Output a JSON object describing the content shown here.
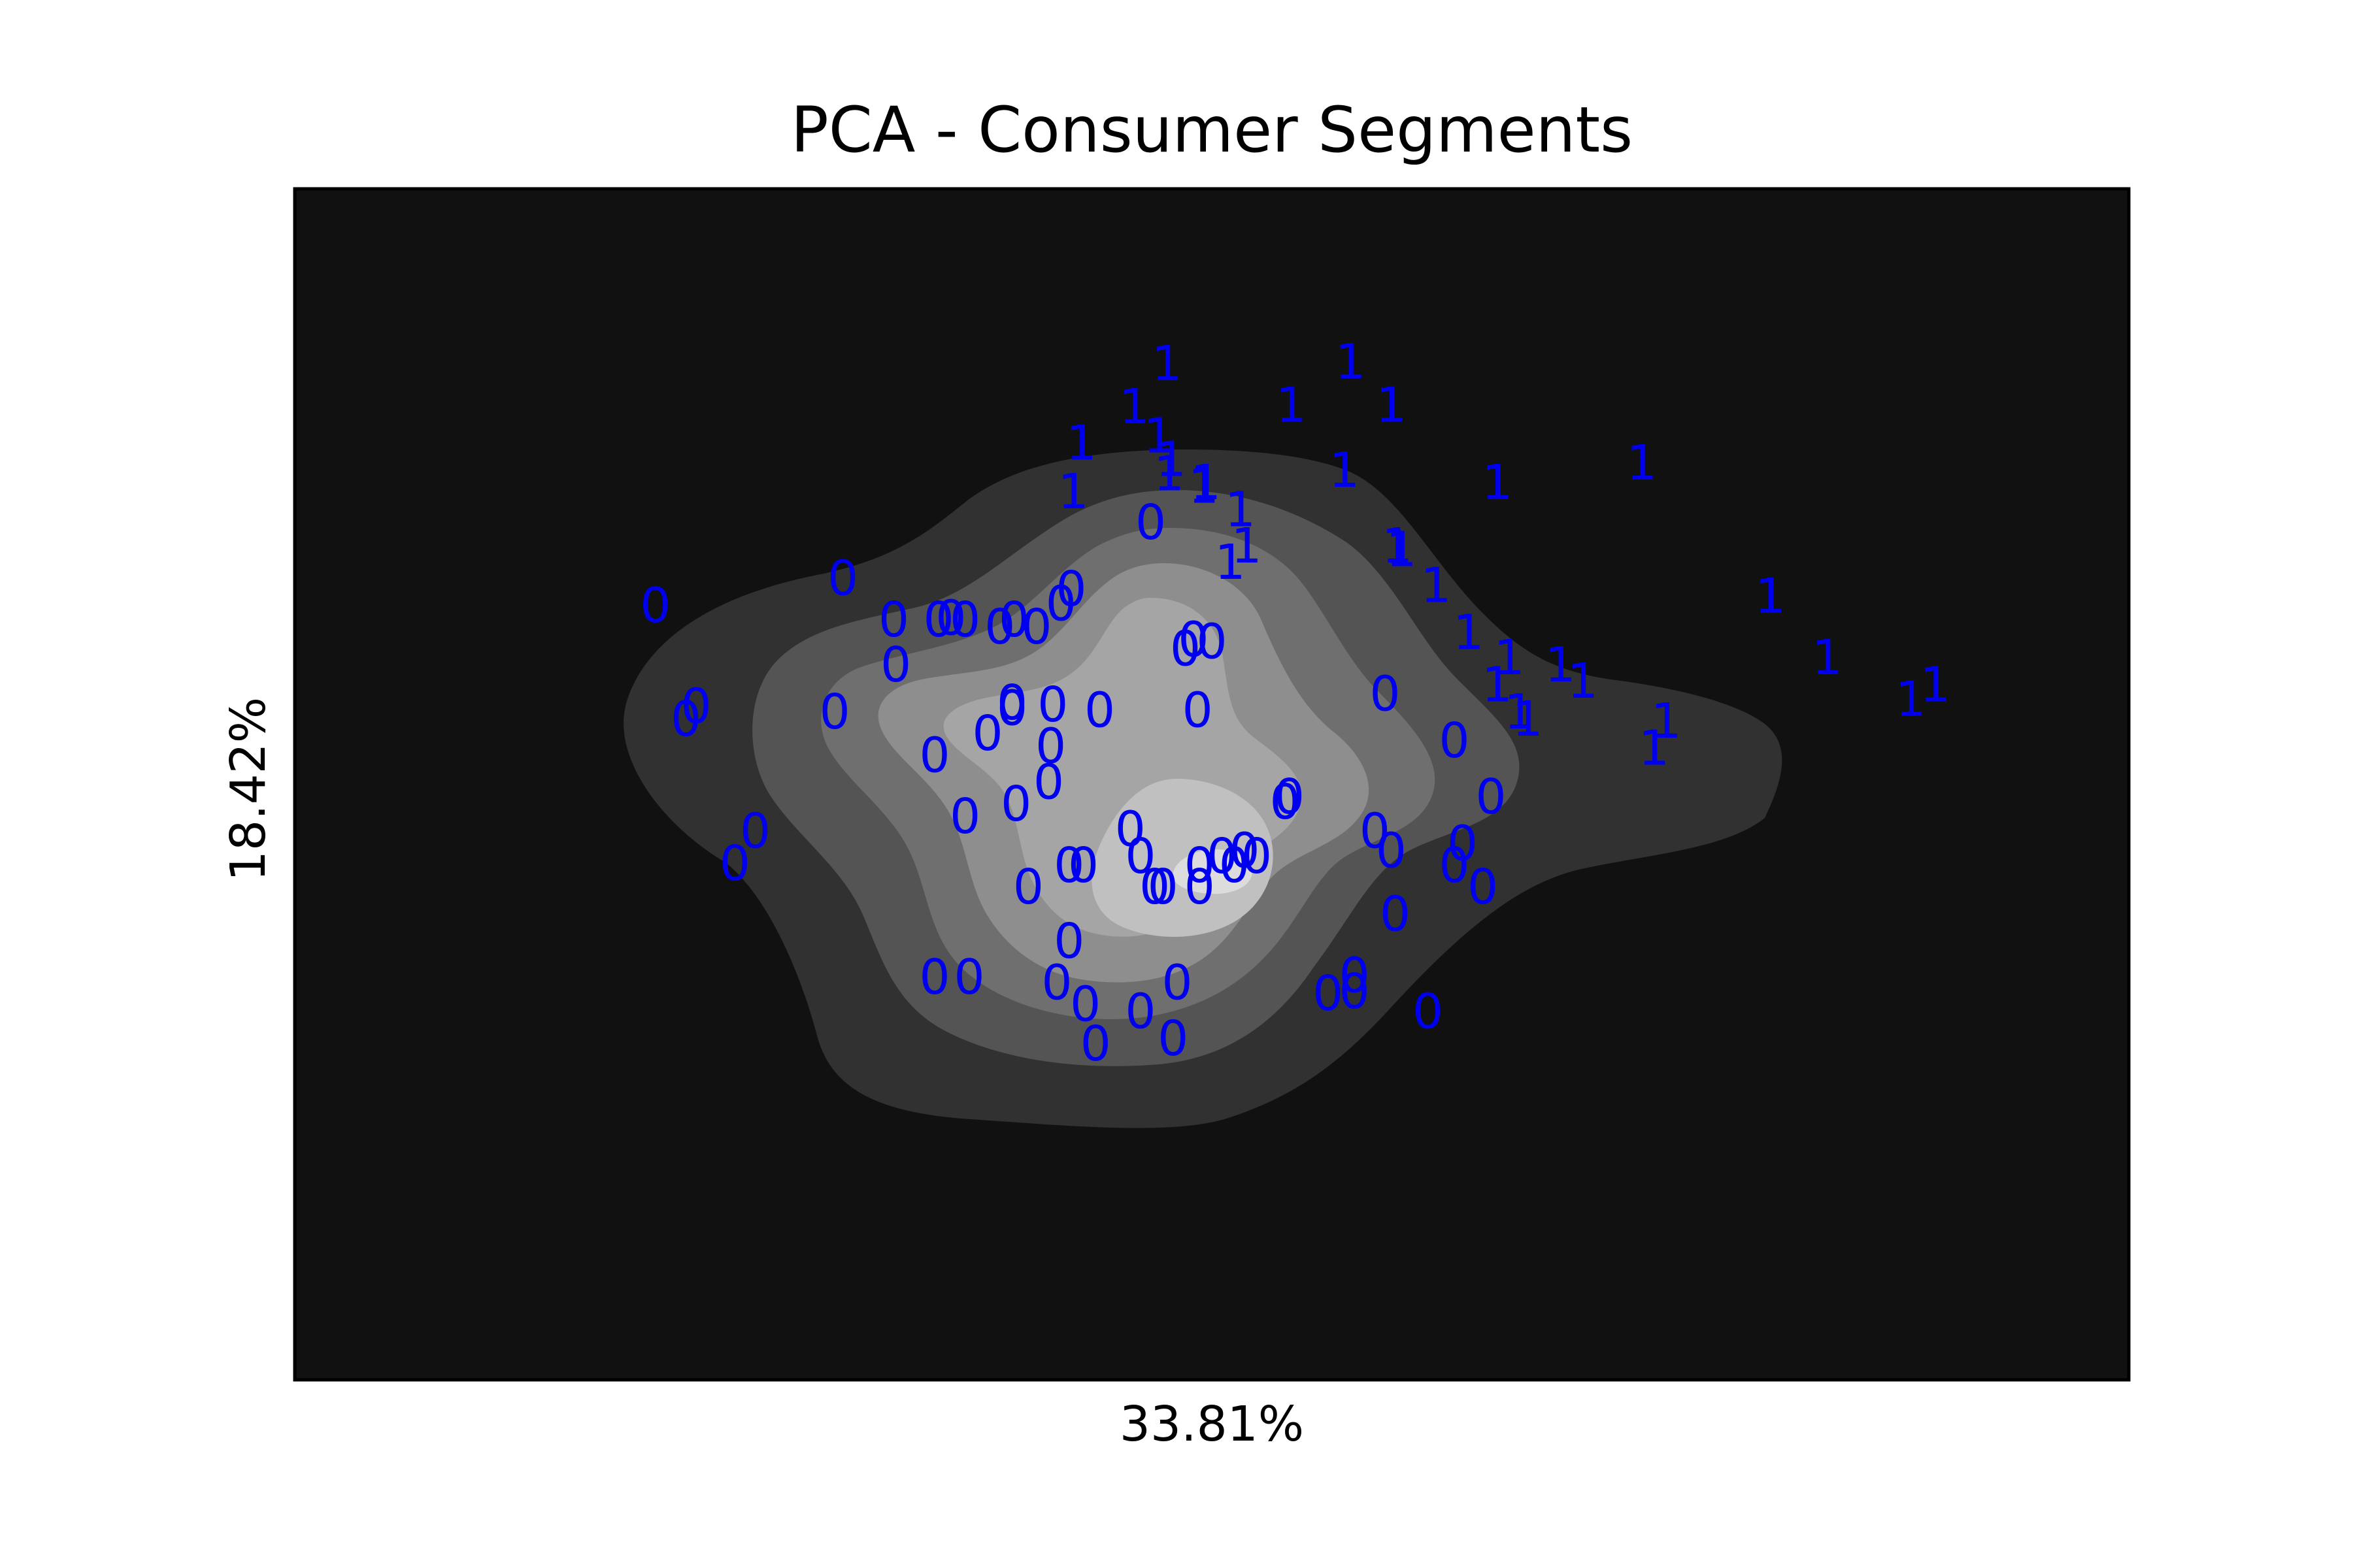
{
  "chart_data": {
    "type": "scatter",
    "title": "PCA - Consumer Segments",
    "xlabel": "33.81%",
    "ylabel": "18.42%",
    "xlim": [
      -4,
      5
    ],
    "ylim": [
      -4,
      2.6
    ],
    "grid": false,
    "legend": "none",
    "background_color": "#111111",
    "marker_color": "#0000ee",
    "contour_colors": [
      "#111111",
      "#313131",
      "#545454",
      "#6f6f6f",
      "#8e8e8e",
      "#a5a5a5",
      "#c0c0c0",
      "#dcdcdc"
    ],
    "series": [
      {
        "marker": "0",
        "points": [
          [
            -1.31,
            0.44
          ],
          [
            -2.23,
            0.29
          ],
          [
            -2.03,
            -0.27
          ],
          [
            -2.08,
            -0.34
          ],
          [
            -1.74,
            -0.96
          ],
          [
            -1.84,
            -1.14
          ],
          [
            -1.06,
            0.21
          ],
          [
            -1.35,
            -0.3
          ],
          [
            -0.6,
            -0.42
          ],
          [
            -1.05,
            -0.04
          ],
          [
            -0.84,
            0.21
          ],
          [
            -0.71,
            0.21
          ],
          [
            -0.47,
            0.21
          ],
          [
            -0.78,
            0.22
          ],
          [
            -0.48,
            -0.25
          ],
          [
            -0.48,
            -0.28
          ],
          [
            -0.54,
            0.17
          ],
          [
            -0.36,
            0.17
          ],
          [
            -0.29,
            -0.49
          ],
          [
            -0.28,
            -0.26
          ],
          [
            -0.24,
            0.3
          ],
          [
            -0.19,
            0.38
          ],
          [
            -0.05,
            -0.29
          ],
          [
            0.2,
            0.75
          ],
          [
            -0.3,
            -0.69
          ],
          [
            -0.86,
            -0.54
          ],
          [
            -0.46,
            -0.81
          ],
          [
            -0.71,
            -0.88
          ],
          [
            -0.2,
            -1.15
          ],
          [
            -0.13,
            -1.15
          ],
          [
            -0.4,
            -1.27
          ],
          [
            -0.2,
            -1.57
          ],
          [
            -0.86,
            -1.77
          ],
          [
            -0.69,
            -1.77
          ],
          [
            -0.26,
            -1.8
          ],
          [
            -0.12,
            -1.92
          ],
          [
            0.33,
            -1.8
          ],
          [
            0.44,
            -1.27
          ],
          [
            0.55,
            -1.1
          ],
          [
            0.72,
            -1.1
          ],
          [
            0.86,
            -0.8
          ],
          [
            0.88,
            -0.77
          ],
          [
            0.1,
            -0.95
          ],
          [
            0.15,
            -1.1
          ],
          [
            0.22,
            -1.27
          ],
          [
            0.26,
            -1.27
          ],
          [
            0.44,
            -1.15
          ],
          [
            0.61,
            -1.15
          ],
          [
            0.66,
            -1.07
          ],
          [
            1.38,
            -1.07
          ],
          [
            1.3,
            -0.96
          ],
          [
            0.41,
            0.1
          ],
          [
            0.43,
            -0.29
          ],
          [
            1.69,
            -0.46
          ],
          [
            1.87,
            -0.77
          ],
          [
            1.73,
            -1.03
          ],
          [
            1.83,
            -1.27
          ],
          [
            1.69,
            -1.15
          ],
          [
            1.4,
            -1.42
          ],
          [
            1.2,
            -1.76
          ],
          [
            1.2,
            -1.85
          ],
          [
            1.07,
            -1.86
          ],
          [
            1.56,
            -1.96
          ],
          [
            0.15,
            -1.96
          ],
          [
            -0.07,
            -2.14
          ],
          [
            0.31,
            -2.11
          ],
          [
            0.37,
            0.05
          ],
          [
            0.5,
            0.09
          ],
          [
            1.35,
            -0.2
          ]
        ]
      },
      {
        "marker": "1",
        "points": [
          [
            0.28,
            1.63
          ],
          [
            1.18,
            1.64
          ],
          [
            0.12,
            1.39
          ],
          [
            1.38,
            1.4
          ],
          [
            0.89,
            1.4
          ],
          [
            0.24,
            1.23
          ],
          [
            -0.14,
            1.19
          ],
          [
            1.15,
            1.04
          ],
          [
            0.46,
            0.95
          ],
          [
            0.29,
            1.02
          ],
          [
            0.3,
            1.1
          ],
          [
            0.47,
            0.97
          ],
          [
            -0.18,
            0.92
          ],
          [
            0.64,
            0.82
          ],
          [
            0.67,
            0.62
          ],
          [
            0.59,
            0.53
          ],
          [
            1.41,
            0.62
          ],
          [
            1.43,
            0.6
          ],
          [
            1.6,
            0.4
          ],
          [
            1.9,
            0.97
          ],
          [
            2.61,
            1.08
          ],
          [
            1.76,
            0.14
          ],
          [
            1.96,
            0.0
          ],
          [
            2.05,
            -0.34
          ],
          [
            2.01,
            -0.3
          ],
          [
            2.21,
            -0.04
          ],
          [
            2.32,
            -0.13
          ],
          [
            1.9,
            -0.15
          ],
          [
            3.24,
            0.34
          ],
          [
            3.52,
            0.0
          ],
          [
            3.93,
            -0.23
          ],
          [
            4.05,
            -0.15
          ],
          [
            2.73,
            -0.35
          ],
          [
            2.67,
            -0.5
          ]
        ]
      }
    ]
  }
}
